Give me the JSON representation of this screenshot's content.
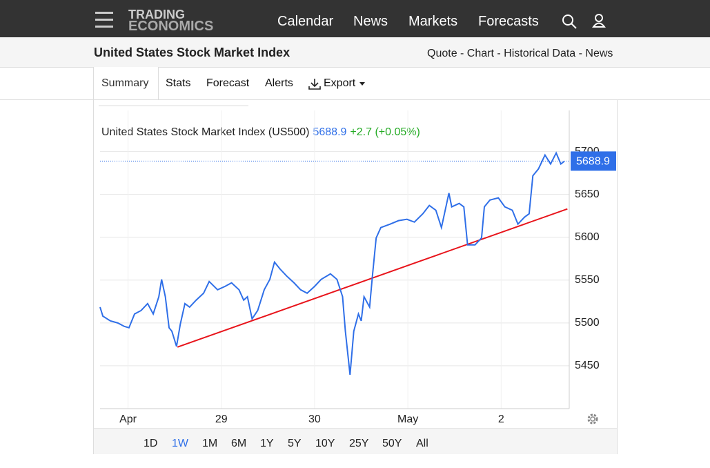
{
  "nav": {
    "logo": [
      "TRADING",
      "ECONOMICS"
    ],
    "links": [
      "Calendar",
      "News",
      "Markets",
      "Forecasts"
    ]
  },
  "header": {
    "title": "United States Stock Market Index",
    "links": "Quote - Chart - Historical Data - News"
  },
  "tabs": [
    "Summary",
    "Stats",
    "Forecast",
    "Alerts",
    "Export"
  ],
  "ranges": {
    "items": [
      "1D",
      "1W",
      "1M",
      "6M",
      "1Y",
      "5Y",
      "10Y",
      "25Y",
      "50Y",
      "All"
    ],
    "active": 1
  },
  "chart_data": {
    "type": "line",
    "legend_name": "United States Stock Market Index (US500)",
    "legend_price": "5688.9",
    "legend_change": "+2.7 (+0.05%)",
    "last_value": 5688.9,
    "last_color": "#2f6fe8",
    "xlim": [
      -0.3,
      4.73
    ],
    "xticks": [
      {
        "value": 0,
        "label": "Apr"
      },
      {
        "value": 1,
        "label": "29"
      },
      {
        "value": 2,
        "label": "30"
      },
      {
        "value": 3,
        "label": "May"
      },
      {
        "value": 4,
        "label": "2"
      }
    ],
    "ylim": [
      5400,
      5748
    ],
    "yticks": [
      5450,
      5500,
      5550,
      5600,
      5650,
      5700
    ],
    "grid": true,
    "series": [
      {
        "name": "US500",
        "color": "#2f6fe8",
        "x": [
          -0.3,
          -0.27,
          -0.19,
          -0.11,
          -0.04,
          0.01,
          0.07,
          0.14,
          0.21,
          0.27,
          0.33,
          0.36,
          0.4,
          0.44,
          0.47,
          0.52,
          0.56,
          0.61,
          0.66,
          0.73,
          0.81,
          0.87,
          0.96,
          1.04,
          1.11,
          1.19,
          1.24,
          1.28,
          1.33,
          1.39,
          1.46,
          1.52,
          1.57,
          1.63,
          1.7,
          1.78,
          1.85,
          1.92,
          2.0,
          2.07,
          2.17,
          2.24,
          2.3,
          2.33,
          2.38,
          2.42,
          2.47,
          2.5,
          2.53,
          2.59,
          2.62,
          2.66,
          2.71,
          2.81,
          2.9,
          2.99,
          3.07,
          3.16,
          3.23,
          3.3,
          3.36,
          3.44,
          3.47,
          3.55,
          3.6,
          3.64,
          3.72,
          3.79,
          3.82,
          3.88,
          3.97,
          4.04,
          4.12,
          4.18,
          4.25,
          4.3,
          4.34,
          4.4,
          4.47,
          4.53,
          4.59,
          4.64,
          4.68
        ],
        "values": [
          5518.5,
          5508,
          5502.4,
          5500,
          5496,
          5494.4,
          5510.5,
          5514.5,
          5522.6,
          5510.5,
          5530.6,
          5550.8,
          5530.6,
          5494.4,
          5490.3,
          5472.6,
          5498.4,
          5522.6,
          5518.5,
          5526.6,
          5534.7,
          5548.4,
          5538.7,
          5542.7,
          5546.8,
          5538.7,
          5526.6,
          5530.6,
          5504.8,
          5514.5,
          5538.7,
          5550.8,
          5571,
          5562.9,
          5554.8,
          5546.8,
          5538.7,
          5534.7,
          5542.7,
          5550.8,
          5557.3,
          5550.8,
          5530.6,
          5490.3,
          5439.5,
          5490.3,
          5510.5,
          5502.4,
          5530.6,
          5518.5,
          5554.8,
          5599.2,
          5611.3,
          5615.3,
          5619.4,
          5621,
          5617.7,
          5627.4,
          5637.1,
          5631.5,
          5611.3,
          5651.6,
          5635.5,
          5639.5,
          5635.5,
          5591.1,
          5591.1,
          5599.2,
          5635.5,
          5643.5,
          5646,
          5635.5,
          5631.5,
          5615.3,
          5623.4,
          5627.4,
          5671.8,
          5679.8,
          5696,
          5685.5,
          5698.4,
          5685.5,
          5688.9
        ]
      }
    ],
    "trendline": {
      "x": [
        0.53,
        4.71
      ],
      "values": [
        5471.8,
        5633.1
      ],
      "color": "#e8141b"
    }
  }
}
